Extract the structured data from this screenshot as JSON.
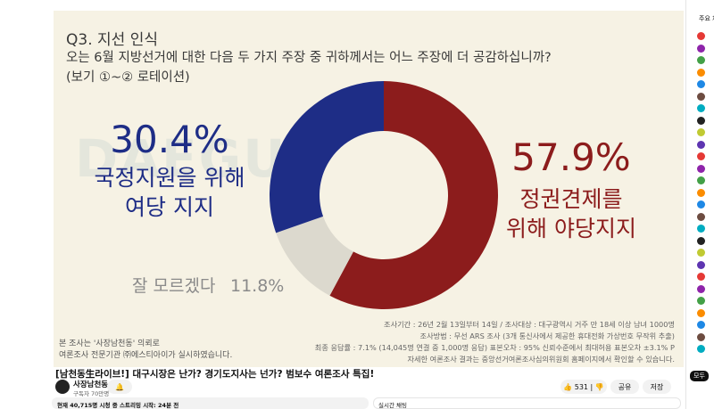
{
  "video": {
    "watermark": "DAEGU",
    "title": "[남천동生라이브!] 대구시장은 난가? 경기도지사는 넌가? 범보수 여론조사 특집!",
    "channel": "사장남천동",
    "subscribers": "구독자 70만명",
    "likes": "531",
    "share": "공유",
    "save": "저장",
    "stats": "현재 40,715명 시청 중 스트리밍 시작: 24분 전",
    "live_chat": "실시간 채팅"
  },
  "sidebar": {
    "header": "주요 채팅",
    "filter": "모두"
  },
  "chart_data": {
    "type": "donut",
    "title": "Q3. 지선 인식",
    "subtitle": "오는 6월 지방선거에 대한 다음 두 가지 주장 중 귀하께서는 어느 주장에 더 공감하십니까?",
    "note": "(보기 ①~② 로테이션)",
    "categories": [
      "정권견제를\n위해 야당지지",
      "잘 모르겠다",
      "국정지원을 위해\n여당 지지"
    ],
    "values": [
      57.9,
      11.8,
      30.4
    ],
    "value_labels": [
      "57.9%",
      "11.8%",
      "30.4%"
    ],
    "colors": [
      "#8c1c1c",
      "#dcd9ce",
      "#1e2d86"
    ],
    "source_lines": [
      "조사기간 : 26년 2월 13일부터 14일 / 조사대상 : 대구광역시 거주 만 18세 이상 남녀 1000명",
      "조사방법 : 무선 ARS 조사 (3개 통신사에서 제공한 휴대전화 가상번호 무작위 추출)",
      "최종 응답률 : 7.1% (14,045명 연결 중 1,000명 응답) 표본오차 : 95% 신뢰수준에서 최대허용 표본오차 ±3.1% P",
      "자세한 여론조사 결과는 중앙선거여론조사심의위원회 홈페이지에서 확인할 수 있습니다."
    ],
    "footnotes": [
      "본 조사는 '사장남천동' 의뢰로",
      "여론조사 전문기관 ㈜에스티아이가 실시하였습니다."
    ]
  }
}
